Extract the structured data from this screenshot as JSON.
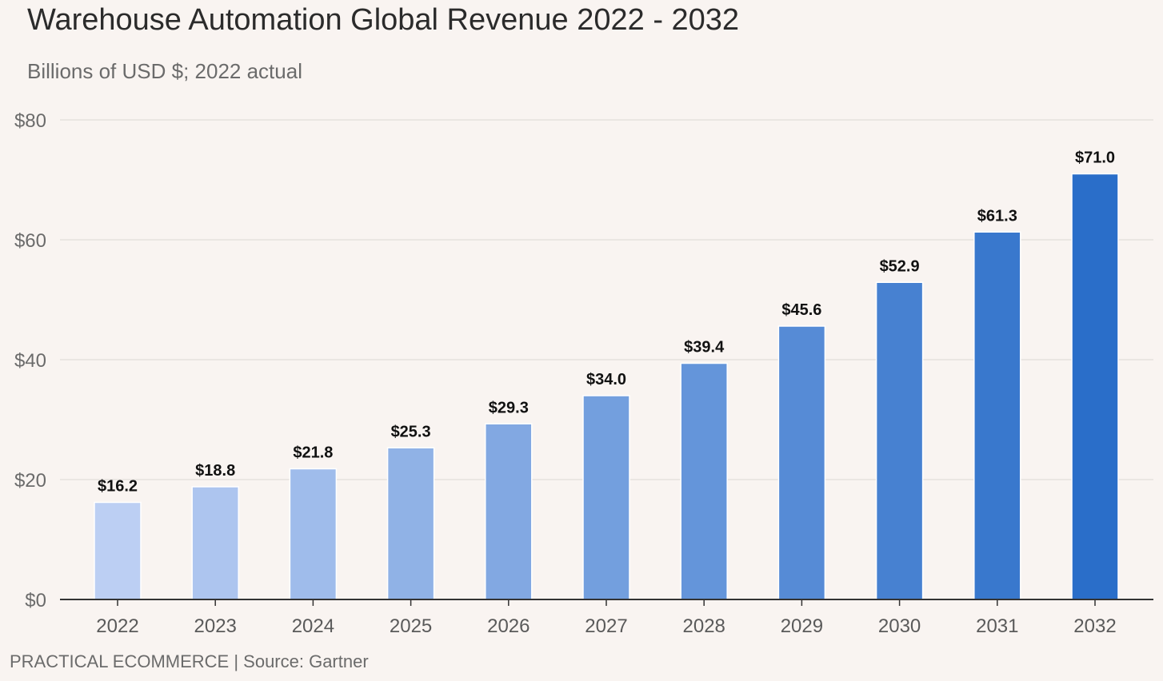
{
  "header": {
    "title": "Warehouse Automation Global Revenue 2022 - 2032",
    "subtitle": "Billions of USD $; 2022 actual"
  },
  "footer": {
    "source": "PRACTICAL ECOMMERCE | Source: Gartner"
  },
  "colors": {
    "background": "#f9f4f1",
    "bar_start": "#bccff3",
    "bar_end": "#2a6ec9",
    "gridline": "#e6e1de",
    "axis": "#333333"
  },
  "chart_data": {
    "type": "bar",
    "title": "Warehouse Automation Global Revenue 2022 - 2032",
    "subtitle": "Billions of USD $; 2022 actual",
    "xlabel": "",
    "ylabel": "",
    "categories": [
      "2022",
      "2023",
      "2024",
      "2025",
      "2026",
      "2027",
      "2028",
      "2029",
      "2030",
      "2031",
      "2032"
    ],
    "values": [
      16.2,
      18.8,
      21.8,
      25.3,
      29.3,
      34.0,
      39.4,
      45.6,
      52.9,
      61.3,
      71.0
    ],
    "data_labels": [
      "$16.2",
      "$18.8",
      "$21.8",
      "$25.3",
      "$29.3",
      "$34.0",
      "$39.4",
      "$45.6",
      "$52.9",
      "$61.3",
      "$71.0"
    ],
    "ylim": [
      0,
      80
    ],
    "yticks": [
      0,
      20,
      40,
      60,
      80
    ],
    "ytick_labels": [
      "$0",
      "$20",
      "$40",
      "$60",
      "$80"
    ],
    "grid": true,
    "legend": "none"
  }
}
